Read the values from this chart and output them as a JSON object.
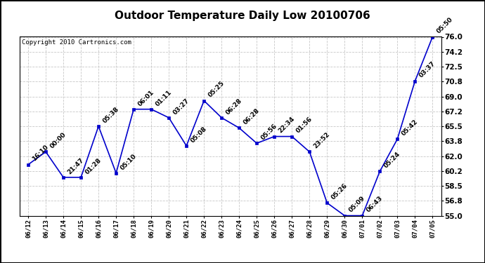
{
  "title": "Outdoor Temperature Daily Low 20100706",
  "copyright_text": "Copyright 2010 Cartronics.com",
  "dates": [
    "06/12",
    "06/13",
    "06/14",
    "06/15",
    "06/16",
    "06/17",
    "06/18",
    "06/19",
    "06/20",
    "06/21",
    "06/22",
    "06/23",
    "06/24",
    "06/25",
    "06/26",
    "06/27",
    "06/28",
    "06/29",
    "06/30",
    "07/01",
    "07/02",
    "07/03",
    "07/04",
    "07/05"
  ],
  "values": [
    61.0,
    62.5,
    59.5,
    59.5,
    65.5,
    60.0,
    67.5,
    67.5,
    66.5,
    63.2,
    68.5,
    66.5,
    65.3,
    63.5,
    64.3,
    64.3,
    62.5,
    56.5,
    55.0,
    55.0,
    60.2,
    64.0,
    70.8,
    76.0
  ],
  "annotations": [
    "16:10",
    "00:00",
    "21:47",
    "01:28",
    "05:38",
    "05:10",
    "06:01",
    "01:11",
    "03:27",
    "05:08",
    "05:25",
    "06:28",
    "06:28",
    "05:56",
    "22:34",
    "01:56",
    "23:52",
    "05:26",
    "05:09",
    "06:43",
    "05:24",
    "05:42",
    "03:37",
    "05:50"
  ],
  "ylim_min": 55.0,
  "ylim_max": 76.0,
  "yticks": [
    55.0,
    56.8,
    58.5,
    60.2,
    62.0,
    63.8,
    65.5,
    67.2,
    69.0,
    70.8,
    72.5,
    74.2,
    76.0
  ],
  "line_color": "#0000cc",
  "marker_color": "#0000cc",
  "grid_color": "#c8c8c8",
  "bg_color": "#ffffff",
  "title_fontsize": 11,
  "annotation_fontsize": 6.5,
  "copyright_fontsize": 6.5,
  "xlabel_fontsize": 6.5,
  "ylabel_fontsize": 7.5
}
